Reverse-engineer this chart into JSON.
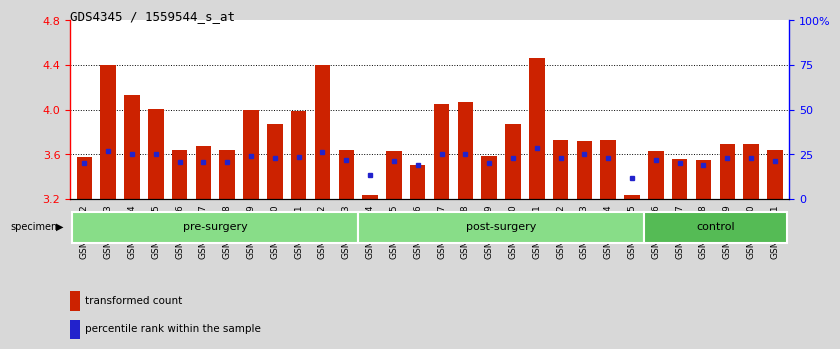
{
  "title": "GDS4345 / 1559544_s_at",
  "samples": [
    "GSM842012",
    "GSM842013",
    "GSM842014",
    "GSM842015",
    "GSM842016",
    "GSM842017",
    "GSM842018",
    "GSM842019",
    "GSM842020",
    "GSM842021",
    "GSM842022",
    "GSM842023",
    "GSM842024",
    "GSM842025",
    "GSM842026",
    "GSM842027",
    "GSM842028",
    "GSM842029",
    "GSM842030",
    "GSM842031",
    "GSM842032",
    "GSM842033",
    "GSM842034",
    "GSM842035",
    "GSM842036",
    "GSM842037",
    "GSM842038",
    "GSM842039",
    "GSM842040",
    "GSM842041"
  ],
  "red_values": [
    3.58,
    4.4,
    4.13,
    4.01,
    3.64,
    3.68,
    3.64,
    4.0,
    3.87,
    3.99,
    4.4,
    3.64,
    3.24,
    3.63,
    3.51,
    4.05,
    4.07,
    3.59,
    3.87,
    4.46,
    3.73,
    3.72,
    3.73,
    3.24,
    3.63,
    3.56,
    3.55,
    3.69,
    3.69,
    3.64
  ],
  "blue_values": [
    3.52,
    3.63,
    3.6,
    3.6,
    3.53,
    3.53,
    3.53,
    3.59,
    3.57,
    3.58,
    3.62,
    3.55,
    3.42,
    3.54,
    3.51,
    3.6,
    3.6,
    3.52,
    3.57,
    3.66,
    3.57,
    3.6,
    3.57,
    3.39,
    3.55,
    3.52,
    3.51,
    3.57,
    3.57,
    3.54
  ],
  "groups": [
    {
      "label": "pre-surgery",
      "start": 0,
      "end": 12,
      "color": "#88DD88"
    },
    {
      "label": "post-surgery",
      "start": 12,
      "end": 24,
      "color": "#88DD88"
    },
    {
      "label": "control",
      "start": 24,
      "end": 30,
      "color": "#55BB55"
    }
  ],
  "ymin": 3.2,
  "ymax": 4.8,
  "yticks": [
    3.2,
    3.6,
    4.0,
    4.4,
    4.8
  ],
  "right_yticks_pct": [
    0,
    25,
    50,
    75,
    100
  ],
  "right_ylabels": [
    "0",
    "25",
    "50",
    "75",
    "100%"
  ],
  "bar_color": "#CC2200",
  "dot_color": "#2222CC",
  "bg_color": "#D8D8D8",
  "plot_bg_color": "#FFFFFF",
  "legend_items": [
    "transformed count",
    "percentile rank within the sample"
  ],
  "title_fontsize": 9,
  "tick_fontsize": 6.5,
  "group_fontsize": 8
}
